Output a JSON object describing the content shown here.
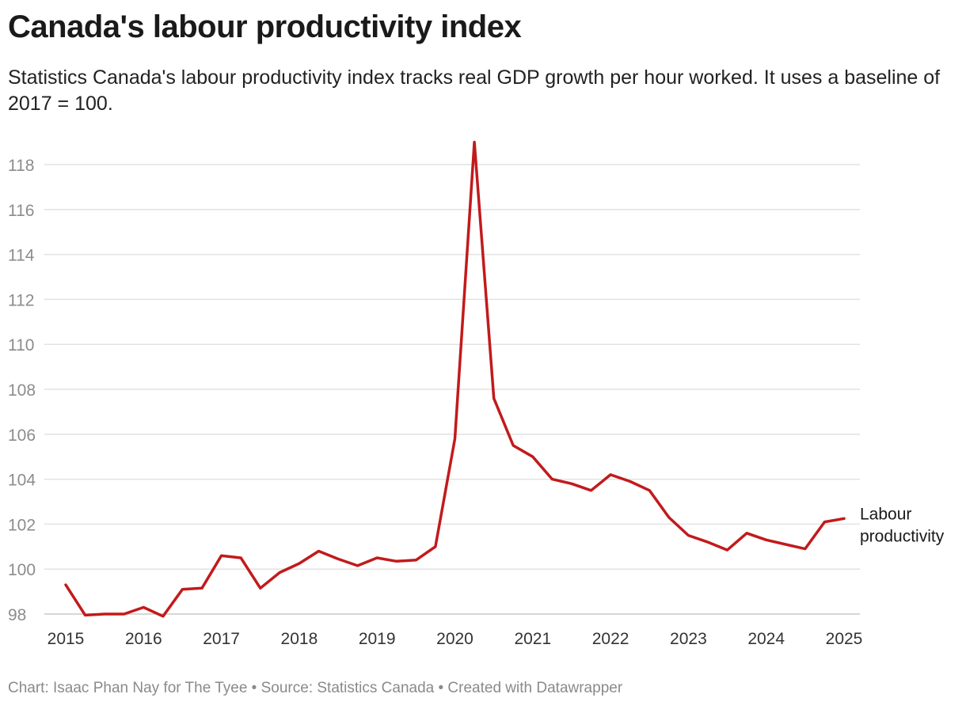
{
  "chart_data": {
    "type": "line",
    "title": "Canada's labour productivity index",
    "subtitle": "Statistics Canada's labour productivity index tracks real GDP growth per hour worked. It uses a baseline of 2017 = 100.",
    "xlabel": "",
    "ylabel": "",
    "ylim": [
      98,
      119
    ],
    "yticks": [
      98,
      100,
      102,
      104,
      106,
      108,
      110,
      112,
      114,
      116,
      118
    ],
    "xlim": [
      2015,
      2025
    ],
    "xticks": [
      2015,
      2016,
      2017,
      2018,
      2019,
      2020,
      2021,
      2022,
      2023,
      2024,
      2025
    ],
    "grid": true,
    "series": [
      {
        "name": "Labour productivity",
        "color": "#c21a1c",
        "x": [
          2015.0,
          2015.25,
          2015.5,
          2015.75,
          2016.0,
          2016.25,
          2016.5,
          2016.75,
          2017.0,
          2017.25,
          2017.5,
          2017.75,
          2018.0,
          2018.25,
          2018.5,
          2018.75,
          2019.0,
          2019.25,
          2019.5,
          2019.75,
          2020.0,
          2020.25,
          2020.5,
          2020.75,
          2021.0,
          2021.25,
          2021.5,
          2021.75,
          2022.0,
          2022.25,
          2022.5,
          2022.75,
          2023.0,
          2023.25,
          2023.5,
          2023.75,
          2024.0,
          2024.25,
          2024.5,
          2024.75,
          2025.0
        ],
        "values": [
          99.3,
          97.95,
          98.0,
          98.0,
          98.3,
          97.9,
          99.1,
          99.15,
          100.6,
          100.5,
          99.15,
          99.85,
          100.25,
          100.8,
          100.45,
          100.15,
          100.5,
          100.35,
          100.4,
          101.0,
          105.8,
          119.0,
          107.6,
          105.5,
          105.0,
          104.0,
          103.8,
          103.5,
          104.2,
          103.9,
          103.5,
          102.3,
          101.5,
          101.2,
          100.85,
          101.6,
          101.3,
          101.1,
          100.9,
          102.1,
          102.25
        ]
      }
    ],
    "series_label_lines": [
      "Labour",
      "productivity"
    ]
  },
  "footer": "Chart: Isaac Phan Nay for The Tyee • Source: Statistics Canada • Created with Datawrapper"
}
